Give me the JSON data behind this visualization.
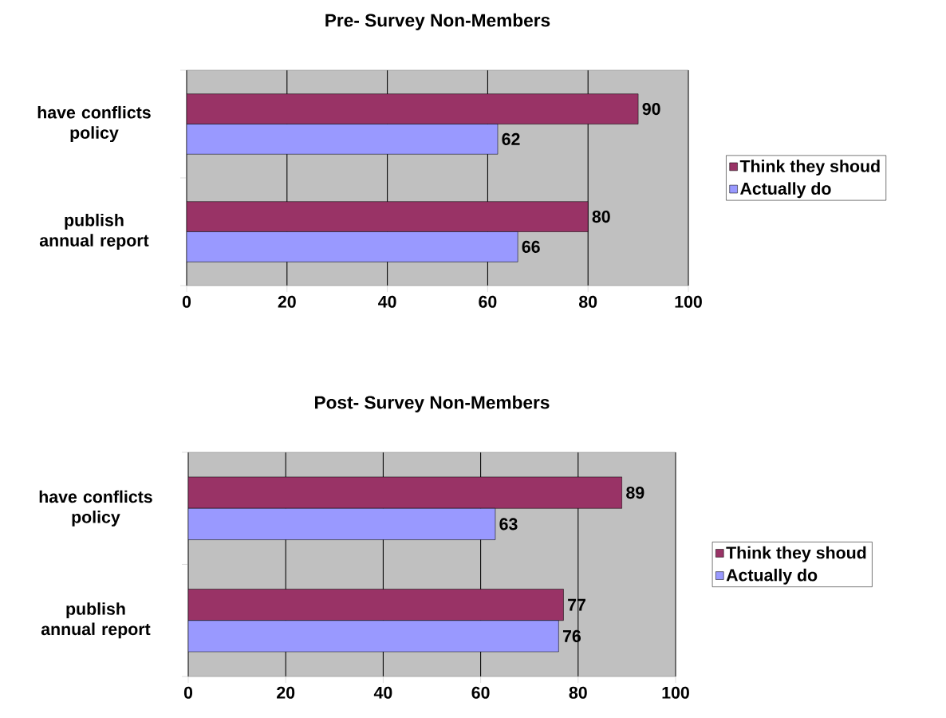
{
  "chart_data": [
    {
      "type": "bar",
      "orientation": "horizontal",
      "title": "Pre-  Survey Non-Members",
      "categories": [
        "have conflicts policy",
        "publish annual report"
      ],
      "series": [
        {
          "name": "Think they shoud",
          "color": "#993366",
          "values": [
            90,
            80
          ]
        },
        {
          "name": "Actually do",
          "color": "#9999ff",
          "values": [
            62,
            66
          ]
        }
      ],
      "xlim": [
        0,
        100
      ],
      "xticks": [
        0,
        20,
        40,
        60,
        80,
        100
      ],
      "grid": "x",
      "legend": "right",
      "data_labels": true
    },
    {
      "type": "bar",
      "orientation": "horizontal",
      "title": "Post- Survey Non-Members",
      "categories": [
        "have conflicts policy",
        "publish annual report"
      ],
      "series": [
        {
          "name": "Think they shoud",
          "color": "#993366",
          "values": [
            89,
            77
          ]
        },
        {
          "name": "Actually do",
          "color": "#9999ff",
          "values": [
            63,
            76
          ]
        }
      ],
      "xlim": [
        0,
        100
      ],
      "xticks": [
        0,
        20,
        40,
        60,
        80,
        100
      ],
      "grid": "x",
      "legend": "right",
      "data_labels": true
    }
  ]
}
